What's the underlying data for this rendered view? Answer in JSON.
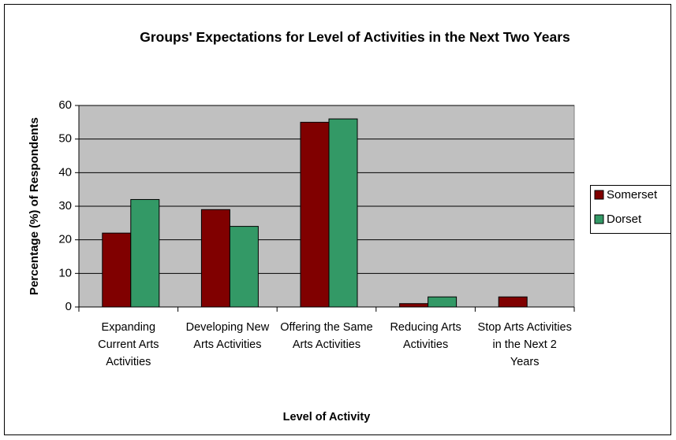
{
  "chart_data": {
    "type": "bar",
    "title": "Groups' Expectations for Level of Activities in the Next Two Years",
    "x_label": "Level of Activity",
    "y_label": "Percentage (%) of Respondents",
    "categories": [
      "Expanding Current Arts Activities",
      "Developing New Arts Activities",
      "Offering the Same Arts Activities",
      "Reducing Arts Activities",
      "Stop Arts Activities in the Next 2 Years"
    ],
    "series": [
      {
        "name": "Somerset",
        "color": "#800000",
        "values": [
          22,
          29,
          55,
          1,
          3
        ]
      },
      {
        "name": "Dorset",
        "color": "#339966",
        "values": [
          32,
          24,
          56,
          3,
          0
        ]
      }
    ],
    "ylim": [
      0,
      60
    ],
    "yticks": [
      0,
      10,
      20,
      30,
      40,
      50,
      60
    ],
    "grid": true,
    "legend": "right"
  }
}
